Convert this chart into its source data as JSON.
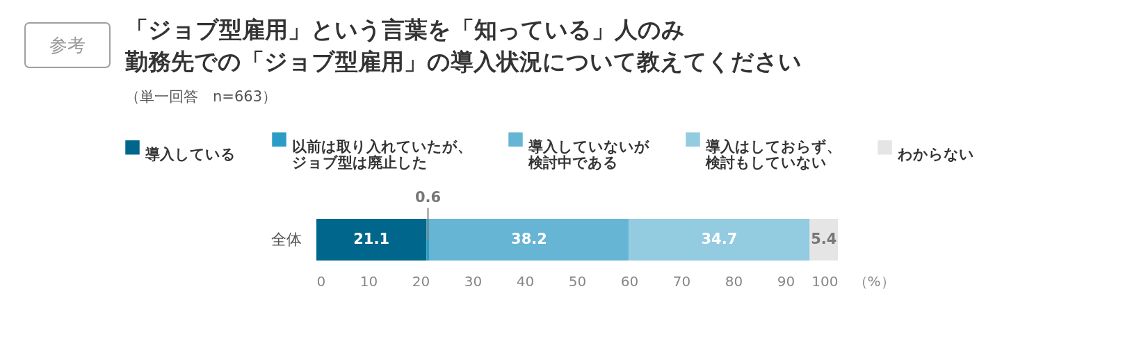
{
  "chart_data": {
    "type": "bar",
    "orientation": "horizontal",
    "stacked": true,
    "title": "「ジョブ型雇用」という言葉を「知っている」人のみ勤務先での「ジョブ型雇用」の導入状況について教えてください",
    "subtitle": "（単一回答　n=663）",
    "annotations": [
      "参考"
    ],
    "xlabel": "（%）",
    "categories": [
      "全体"
    ],
    "series": [
      {
        "name": "導入している",
        "color": "#00668c",
        "values": [
          21.1
        ]
      },
      {
        "name": "以前は取り入れていたが、ジョブ型は廃止した",
        "color": "#2b9cc6",
        "values": [
          0.6
        ]
      },
      {
        "name": "導入していないが検討中である",
        "color": "#66b5d5",
        "values": [
          38.2
        ]
      },
      {
        "name": "導入はしておらず、検討もしていない",
        "color": "#93cbe0",
        "values": [
          34.7
        ]
      },
      {
        "name": "わからない",
        "color": "#e5e5e5",
        "values": [
          5.4
        ]
      }
    ],
    "xlim": [
      0,
      100
    ],
    "xticks": [
      0,
      10,
      20,
      30,
      40,
      50,
      60,
      70,
      80,
      90,
      100
    ],
    "data_labels": true,
    "legend": "top",
    "grid": false
  }
}
